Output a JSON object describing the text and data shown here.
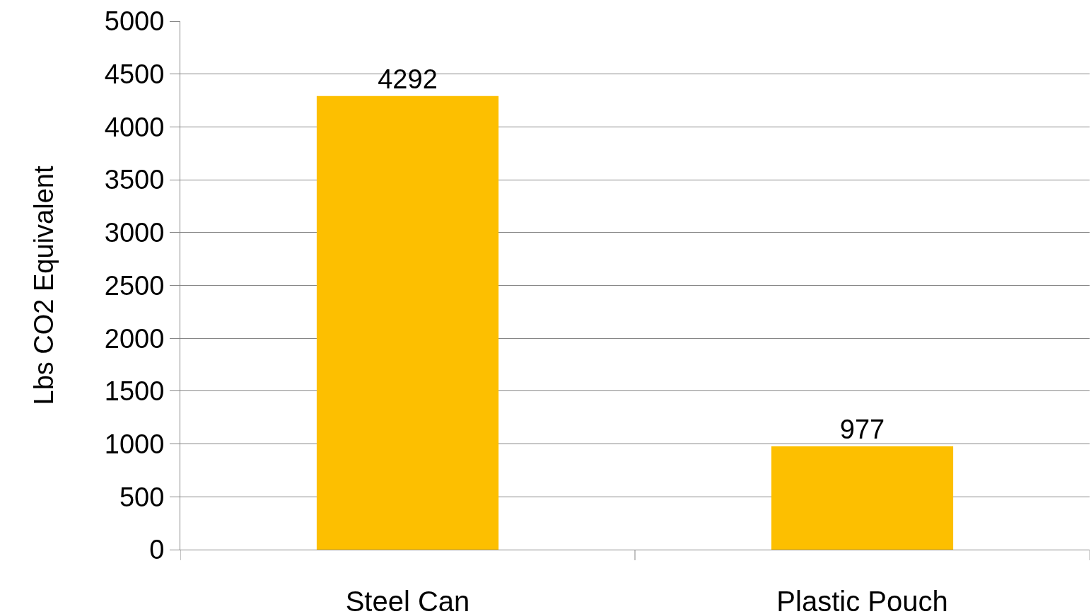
{
  "chart_data": {
    "type": "bar",
    "ylabel": "Lbs CO2 Equivalent",
    "categories": [
      "Steel Can",
      "Plastic Pouch"
    ],
    "values": [
      4292,
      977
    ],
    "color": "#fdbf00",
    "ylim": [
      0,
      5000
    ],
    "yticks": [
      0,
      500,
      1000,
      1500,
      2000,
      2500,
      3000,
      3500,
      4000,
      4500,
      5000
    ],
    "grid": "y",
    "data_labels": true
  }
}
